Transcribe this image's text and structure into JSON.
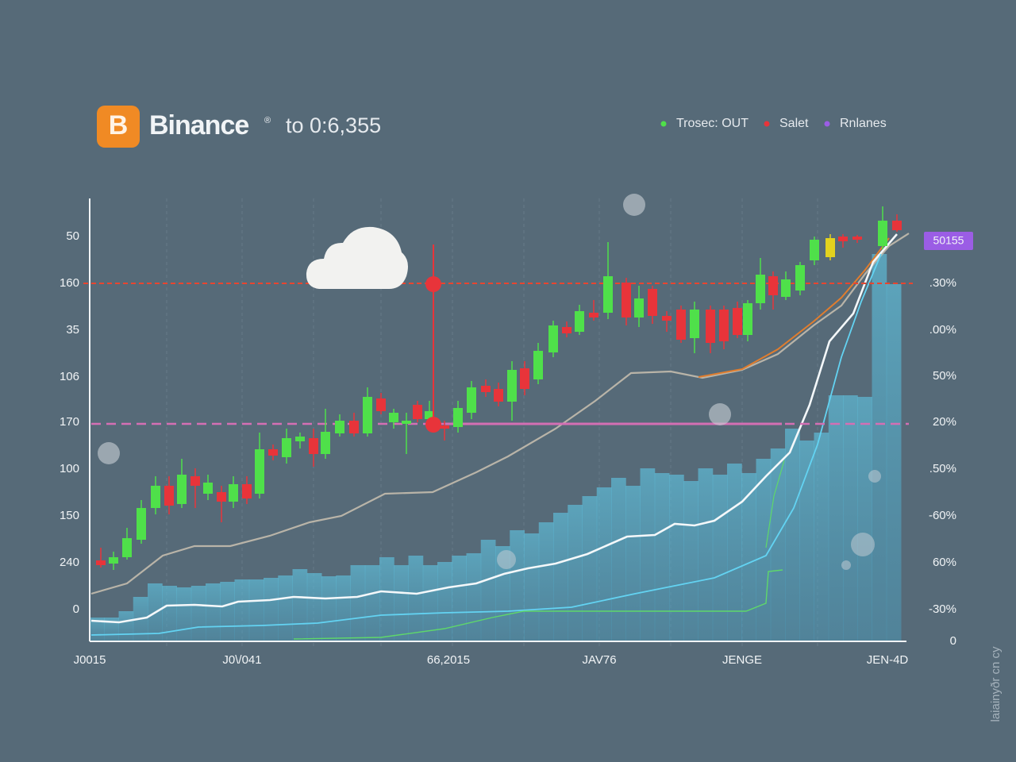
{
  "header": {
    "brand": "Binance",
    "trademark": "®",
    "price": "to 0:6,355"
  },
  "legend": [
    {
      "label": "Trosec: OUT",
      "color": "#4fe04a"
    },
    {
      "label": "Salet",
      "color": "#e8343a"
    },
    {
      "label": "Rnlanes",
      "color": "#9b5de5"
    }
  ],
  "badge": "50155",
  "left_axis": [
    "50",
    "160",
    "35",
    "106",
    "170",
    "100",
    "150",
    "240",
    "0"
  ],
  "right_axis": [
    ".30%",
    ".00%",
    "50%",
    "20%",
    ".50%",
    "-60%",
    "60%",
    "-30%",
    "0"
  ],
  "x_axis": [
    "J0015",
    "J0\\/041",
    "66,2015",
    "JAV76",
    "JENGE",
    "JEN-4D"
  ],
  "watermark": "laiainyðr cn cy"
}
